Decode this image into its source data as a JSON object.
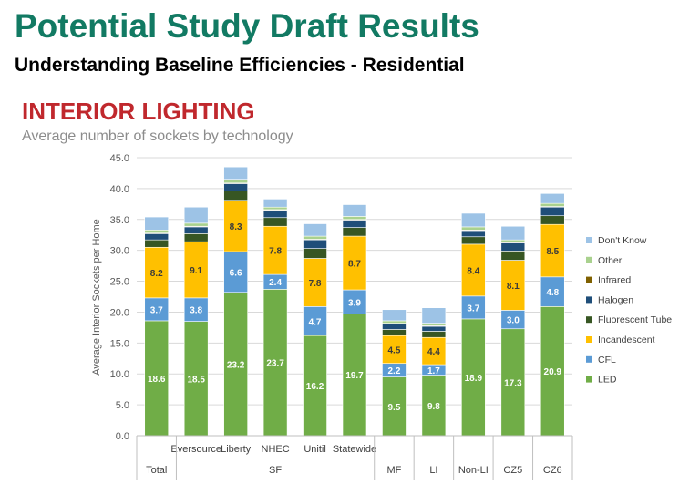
{
  "page": {
    "title": "Potential Study Draft Results",
    "subtitle": "Understanding Baseline Efficiencies - Residential"
  },
  "chart_data": {
    "type": "bar",
    "stacked": true,
    "title": "INTERIOR LIGHTING",
    "subtitle": "Average number of sockets by technology",
    "ylabel": "Average Interior Sockets per Home",
    "ylim": [
      0,
      45
    ],
    "yticks": [
      "0.0",
      "5.0",
      "10.0",
      "15.0",
      "20.0",
      "25.0",
      "30.0",
      "35.0",
      "40.0",
      "45.0"
    ],
    "grid": true,
    "legend_position": "right",
    "categories": [
      "Total",
      "Eversource",
      "Liberty",
      "NHEC",
      "Unitil",
      "Statewide",
      "MF",
      "LI",
      "Non-LI",
      "CZ5",
      "CZ6"
    ],
    "group_labels": [
      {
        "label": "Total",
        "span": [
          0,
          0
        ]
      },
      {
        "label": "SF",
        "span": [
          1,
          5
        ]
      },
      {
        "label": "MF",
        "span": [
          6,
          6
        ]
      },
      {
        "label": "LI",
        "span": [
          7,
          7
        ]
      },
      {
        "label": "Non-LI",
        "span": [
          8,
          8
        ]
      },
      {
        "label": "CZ5",
        "span": [
          9,
          9
        ]
      },
      {
        "label": "CZ6",
        "span": [
          10,
          10
        ]
      }
    ],
    "series": [
      {
        "name": "LED",
        "color": "#70ad47",
        "values": [
          18.6,
          18.5,
          23.2,
          23.7,
          16.2,
          19.7,
          9.5,
          9.8,
          18.9,
          17.3,
          20.9
        ],
        "labels": [
          "18.6",
          "18.5",
          "23.2",
          "23.7",
          "16.2",
          "19.7",
          "9.5",
          "9.8",
          "18.9",
          "17.3",
          "20.9"
        ]
      },
      {
        "name": "CFL",
        "color": "#5b9bd5",
        "values": [
          3.7,
          3.8,
          6.6,
          2.4,
          4.7,
          3.9,
          2.2,
          1.7,
          3.7,
          3.0,
          4.8
        ],
        "labels": [
          "3.7",
          "3.8",
          "6.6",
          "2.4",
          "4.7",
          "3.9",
          "2.2",
          "1.7",
          "3.7",
          "3.0",
          "4.8"
        ]
      },
      {
        "name": "Incandescent",
        "color": "#ffc000",
        "values": [
          8.2,
          9.1,
          8.3,
          7.8,
          7.8,
          8.7,
          4.5,
          4.4,
          8.4,
          8.1,
          8.5
        ],
        "labels": [
          "8.2",
          "9.1",
          "8.3",
          "7.8",
          "7.8",
          "8.7",
          "4.5",
          "4.4",
          "8.4",
          "8.1",
          "8.5"
        ]
      },
      {
        "name": "Fluorescent Tube",
        "color": "#375623",
        "values": [
          1.2,
          1.3,
          1.5,
          1.4,
          1.6,
          1.4,
          1.0,
          1.0,
          1.2,
          1.5,
          1.4
        ]
      },
      {
        "name": "Halogen",
        "color": "#1f4e79",
        "values": [
          1.0,
          1.1,
          1.2,
          1.2,
          1.4,
          1.2,
          0.9,
          0.8,
          1.0,
          1.3,
          1.4
        ]
      },
      {
        "name": "Infrared",
        "color": "#7f6000",
        "values": [
          0.1,
          0.1,
          0.1,
          0.1,
          0.1,
          0.1,
          0.1,
          0.1,
          0.1,
          0.1,
          0.1
        ]
      },
      {
        "name": "Other",
        "color": "#a9d18e",
        "values": [
          0.5,
          0.5,
          0.6,
          0.4,
          0.5,
          0.5,
          0.4,
          0.4,
          0.5,
          0.4,
          0.5
        ]
      },
      {
        "name": "Don't Know",
        "color": "#9dc3e6",
        "values": [
          2.1,
          2.6,
          2.0,
          1.3,
          2.0,
          1.9,
          1.8,
          2.5,
          2.2,
          2.2,
          1.6
        ]
      }
    ],
    "legend_order": [
      "Don't Know",
      "Other",
      "Infrared",
      "Halogen",
      "Fluorescent Tube",
      "Incandescent",
      "CFL",
      "LED"
    ]
  }
}
